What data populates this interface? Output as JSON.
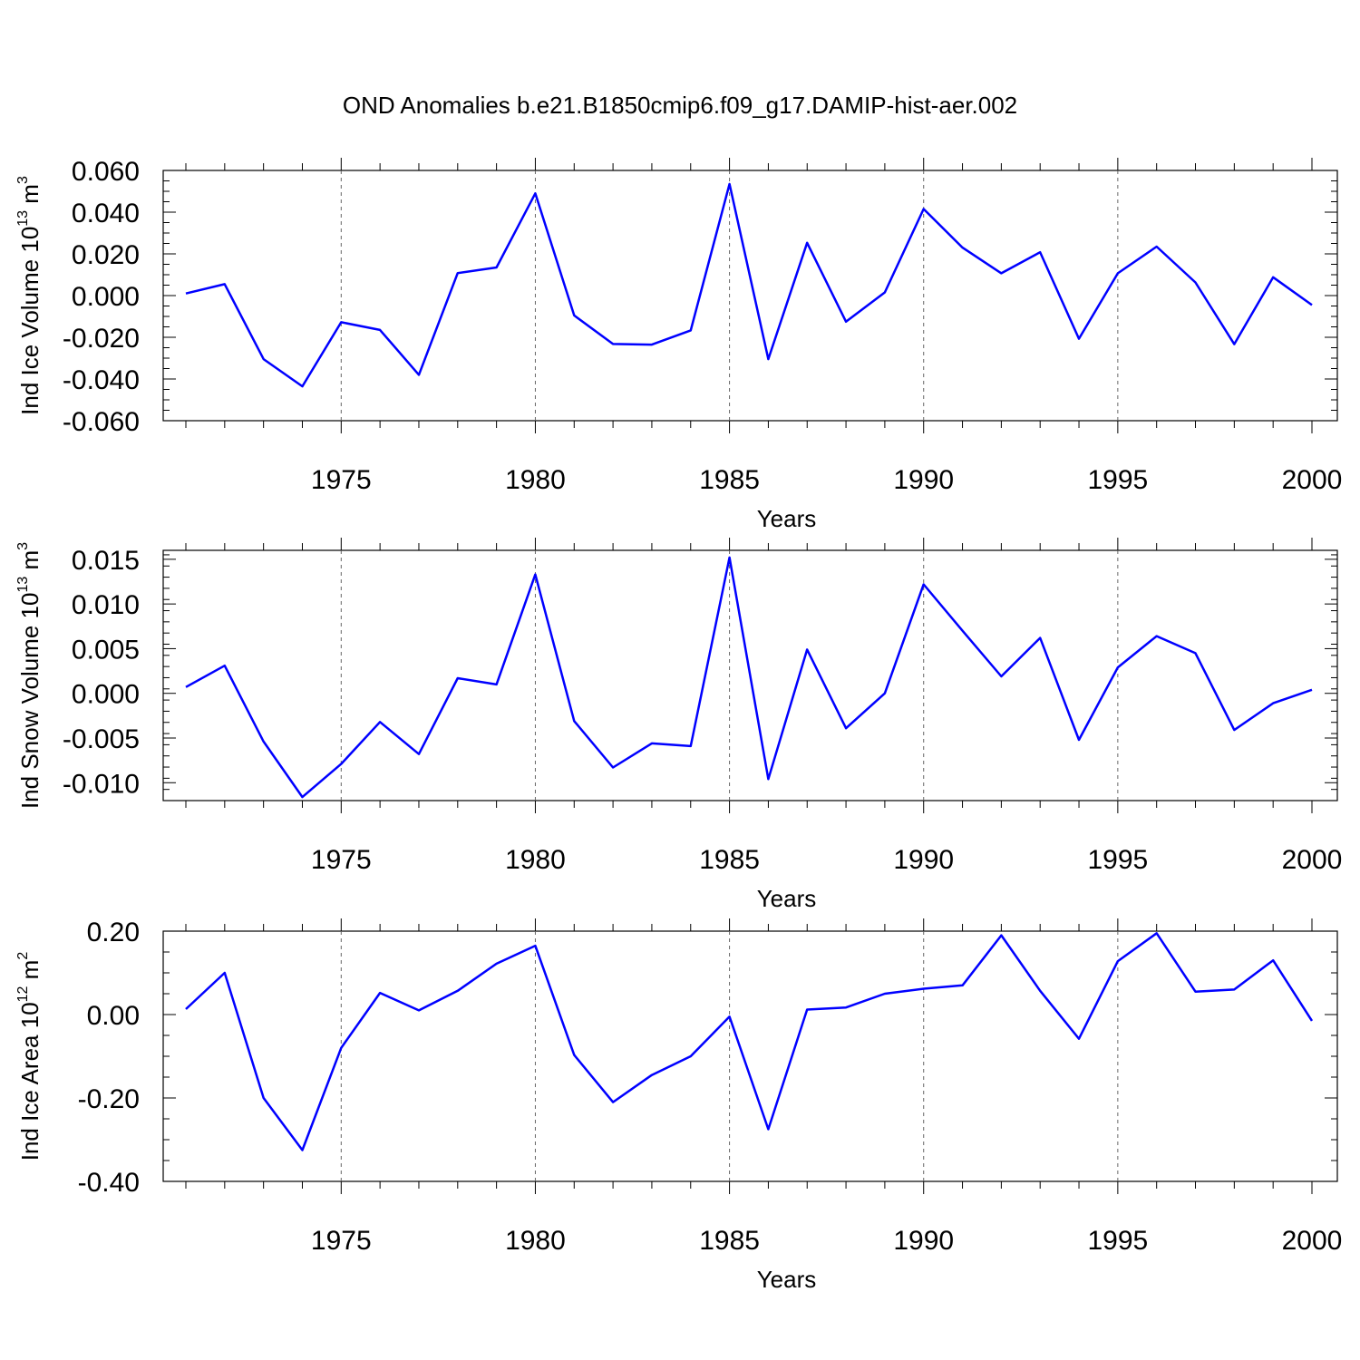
{
  "title": "OND Anomalies b.e21.B1850cmip6.f09_g17.DAMIP-hist-aer.002",
  "line_color": "#0000ff",
  "chart_data": [
    {
      "type": "line",
      "xlabel": "Years",
      "ylabel_main": "Ind Ice Volume 10",
      "ylabel_exp": "13",
      "ylabel_unit": " m",
      "ylabel_unit_exp": "3",
      "xlim": [
        1971,
        2000
      ],
      "ylim": [
        -0.06,
        0.06
      ],
      "xticks": [
        1975,
        1980,
        1985,
        1990,
        1995,
        2000
      ],
      "xtick_labels": [
        "1975",
        "1980",
        "1985",
        "1990",
        "1995",
        "2000"
      ],
      "yticks": [
        -0.06,
        -0.04,
        -0.02,
        0.0,
        0.02,
        0.04,
        0.06
      ],
      "ytick_labels": [
        "-0.060",
        "-0.040",
        "-0.020",
        "0.000",
        "0.020",
        "0.040",
        "0.060"
      ],
      "x": [
        1971,
        1972,
        1973,
        1974,
        1975,
        1976,
        1977,
        1978,
        1979,
        1980,
        1981,
        1982,
        1983,
        1984,
        1985,
        1986,
        1987,
        1988,
        1989,
        1990,
        1991,
        1992,
        1993,
        1994,
        1995,
        1996,
        1997,
        1998,
        1999,
        2000
      ],
      "y": [
        0.001,
        0.0055,
        -0.0305,
        -0.0435,
        -0.0128,
        -0.0165,
        -0.038,
        0.0108,
        0.0135,
        0.049,
        -0.0095,
        -0.0232,
        -0.0235,
        -0.0167,
        0.0535,
        -0.0305,
        0.0253,
        -0.0125,
        0.0015,
        0.0415,
        0.023,
        0.0107,
        0.0208,
        -0.0207,
        0.0107,
        0.0235,
        0.0063,
        -0.0233,
        0.0088,
        -0.0045
      ]
    },
    {
      "type": "line",
      "xlabel": "Years",
      "ylabel_main": "Ind Snow Volume 10",
      "ylabel_exp": "13",
      "ylabel_unit": " m",
      "ylabel_unit_exp": "3",
      "xlim": [
        1971,
        2000
      ],
      "ylim": [
        -0.012,
        0.016
      ],
      "xticks": [
        1975,
        1980,
        1985,
        1990,
        1995,
        2000
      ],
      "xtick_labels": [
        "1975",
        "1980",
        "1985",
        "1990",
        "1995",
        "2000"
      ],
      "yticks": [
        -0.01,
        -0.005,
        0.0,
        0.005,
        0.01,
        0.015
      ],
      "ytick_labels": [
        "-0.010",
        "-0.005",
        "0.000",
        "0.005",
        "0.010",
        "0.015"
      ],
      "x": [
        1971,
        1972,
        1973,
        1974,
        1975,
        1976,
        1977,
        1978,
        1979,
        1980,
        1981,
        1982,
        1983,
        1984,
        1985,
        1986,
        1987,
        1988,
        1989,
        1990,
        1991,
        1992,
        1993,
        1994,
        1995,
        1996,
        1997,
        1998,
        1999,
        2000
      ],
      "y": [
        0.0007,
        0.0031,
        -0.0054,
        -0.0116,
        -0.0079,
        -0.0032,
        -0.0068,
        0.0017,
        0.001,
        0.0133,
        -0.0031,
        -0.0083,
        -0.0056,
        -0.0059,
        0.0152,
        -0.0096,
        0.0049,
        -0.0039,
        0.0,
        0.0122,
        0.007,
        0.0019,
        0.0062,
        -0.0052,
        0.0029,
        0.0064,
        0.0045,
        -0.0041,
        -0.0011,
        0.0004
      ]
    },
    {
      "type": "line",
      "xlabel": "Years",
      "ylabel_main": "Ind Ice Area 10",
      "ylabel_exp": "12",
      "ylabel_unit": " m",
      "ylabel_unit_exp": "2",
      "xlim": [
        1971,
        2000
      ],
      "ylim": [
        -0.4,
        0.2
      ],
      "xticks": [
        1975,
        1980,
        1985,
        1990,
        1995,
        2000
      ],
      "xtick_labels": [
        "1975",
        "1980",
        "1985",
        "1990",
        "1995",
        "2000"
      ],
      "yticks": [
        -0.4,
        -0.2,
        0.0,
        0.2
      ],
      "ytick_labels": [
        "-0.40",
        "-0.20",
        "0.00",
        "0.20"
      ],
      "x": [
        1971,
        1972,
        1973,
        1974,
        1975,
        1976,
        1977,
        1978,
        1979,
        1980,
        1981,
        1982,
        1983,
        1984,
        1985,
        1986,
        1987,
        1988,
        1989,
        1990,
        1991,
        1992,
        1993,
        1994,
        1995,
        1996,
        1997,
        1998,
        1999,
        2000
      ],
      "y": [
        0.013,
        0.1,
        -0.2,
        -0.325,
        -0.08,
        0.052,
        0.01,
        0.057,
        0.122,
        0.165,
        -0.097,
        -0.21,
        -0.145,
        -0.1,
        -0.005,
        -0.275,
        0.012,
        0.017,
        0.05,
        0.062,
        0.07,
        0.19,
        0.057,
        -0.058,
        0.128,
        0.195,
        0.055,
        0.06,
        0.13,
        -0.015
      ]
    }
  ]
}
